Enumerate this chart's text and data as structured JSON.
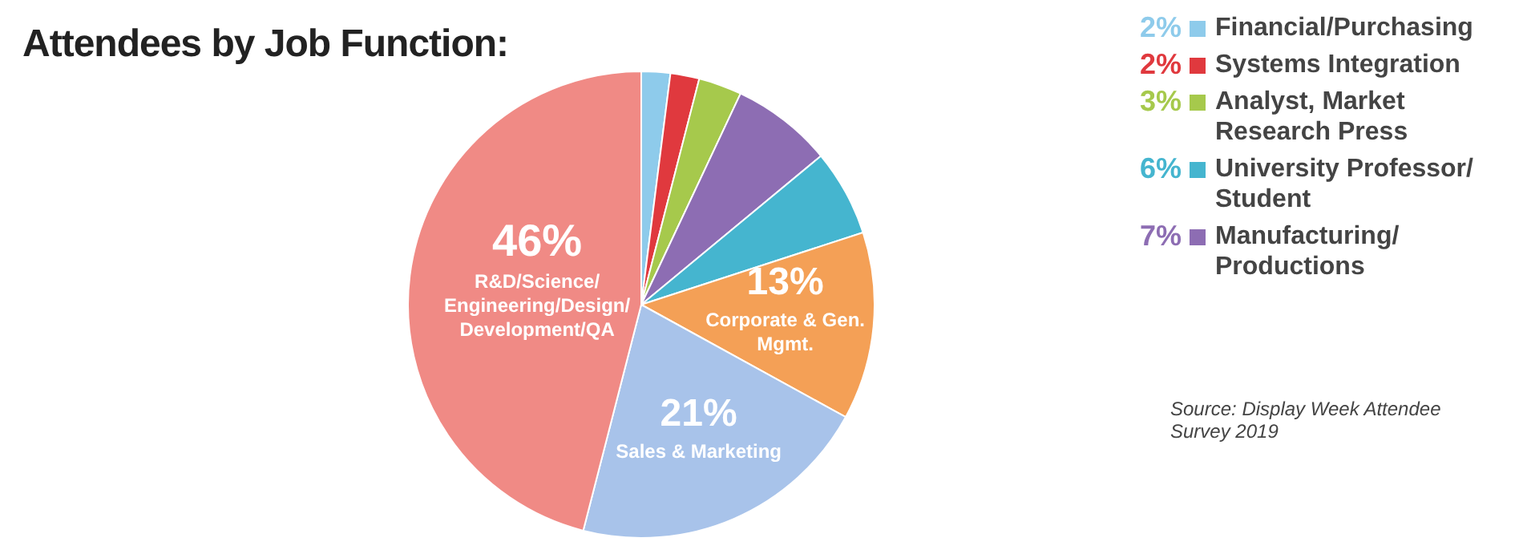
{
  "chart_data": {
    "type": "pie",
    "title": "Attendees by Job Function:",
    "categories": [
      "Financial/Purchasing",
      "Systems Integration",
      "Analyst, Market\nResearch Press",
      "Manufacturing/\nProductions",
      "University Professor/\nStudent",
      "Corporate & Gen.\nMgmt.",
      "Sales & Marketing",
      "R&D/Science/\nEngineering/Design/\nDevelopment/QA"
    ],
    "values": [
      2,
      2,
      3,
      7,
      6,
      13,
      21,
      46
    ],
    "legend": "right",
    "colors": [
      "#8ecbeb",
      "#e0393e",
      "#a6c94c",
      "#8d6db3",
      "#45b5cf",
      "#f4a056",
      "#a8c3ea",
      "#f08a85"
    ],
    "value_labels": [
      "2%",
      "2%",
      "3%",
      "7%",
      "6%",
      "13%",
      "21%",
      "46%"
    ],
    "annotations": [
      "Source: Display Week Attendee\nSurvey 2019"
    ]
  }
}
